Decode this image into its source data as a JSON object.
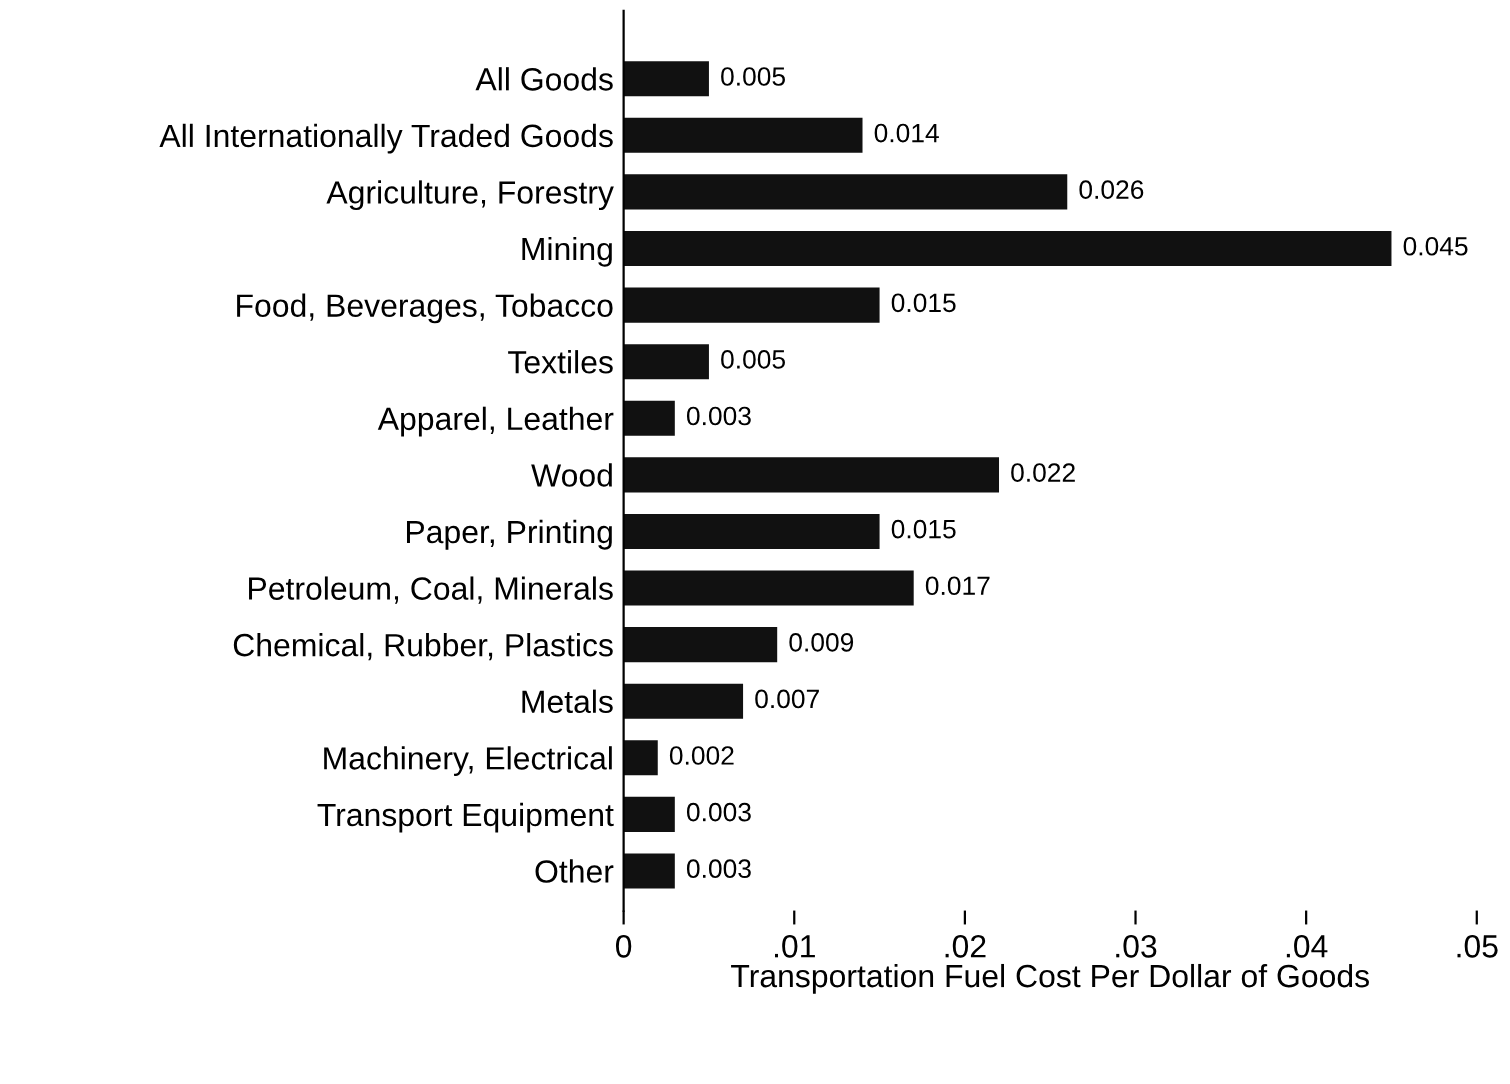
{
  "chart_data": {
    "type": "bar",
    "orientation": "horizontal",
    "xlabel": "Transportation Fuel Cost Per Dollar of Goods",
    "categories": [
      "All Goods",
      "All Internationally Traded Goods",
      "Agriculture, Forestry",
      "Mining",
      "Food, Beverages, Tobacco",
      "Textiles",
      "Apparel, Leather",
      "Wood",
      "Paper, Printing",
      "Petroleum, Coal, Minerals",
      "Chemical, Rubber, Plastics",
      "Metals",
      "Machinery, Electrical",
      "Transport Equipment",
      "Other"
    ],
    "values": [
      0.005,
      0.014,
      0.026,
      0.045,
      0.015,
      0.005,
      0.003,
      0.022,
      0.015,
      0.017,
      0.009,
      0.007,
      0.002,
      0.003,
      0.003
    ],
    "color": "#111111",
    "data_labels": true,
    "xlim": [
      0,
      0.05
    ],
    "xticks": [
      0,
      {
        "value": 0.01,
        "label": ".01"
      },
      {
        "value": 0.02,
        "label": ".02"
      },
      {
        "value": 0.03,
        "label": ".03"
      },
      {
        "value": 0.04,
        "label": ".04"
      },
      {
        "value": 0.05,
        "label": ".05"
      }
    ],
    "grid": false,
    "legend": false
  }
}
